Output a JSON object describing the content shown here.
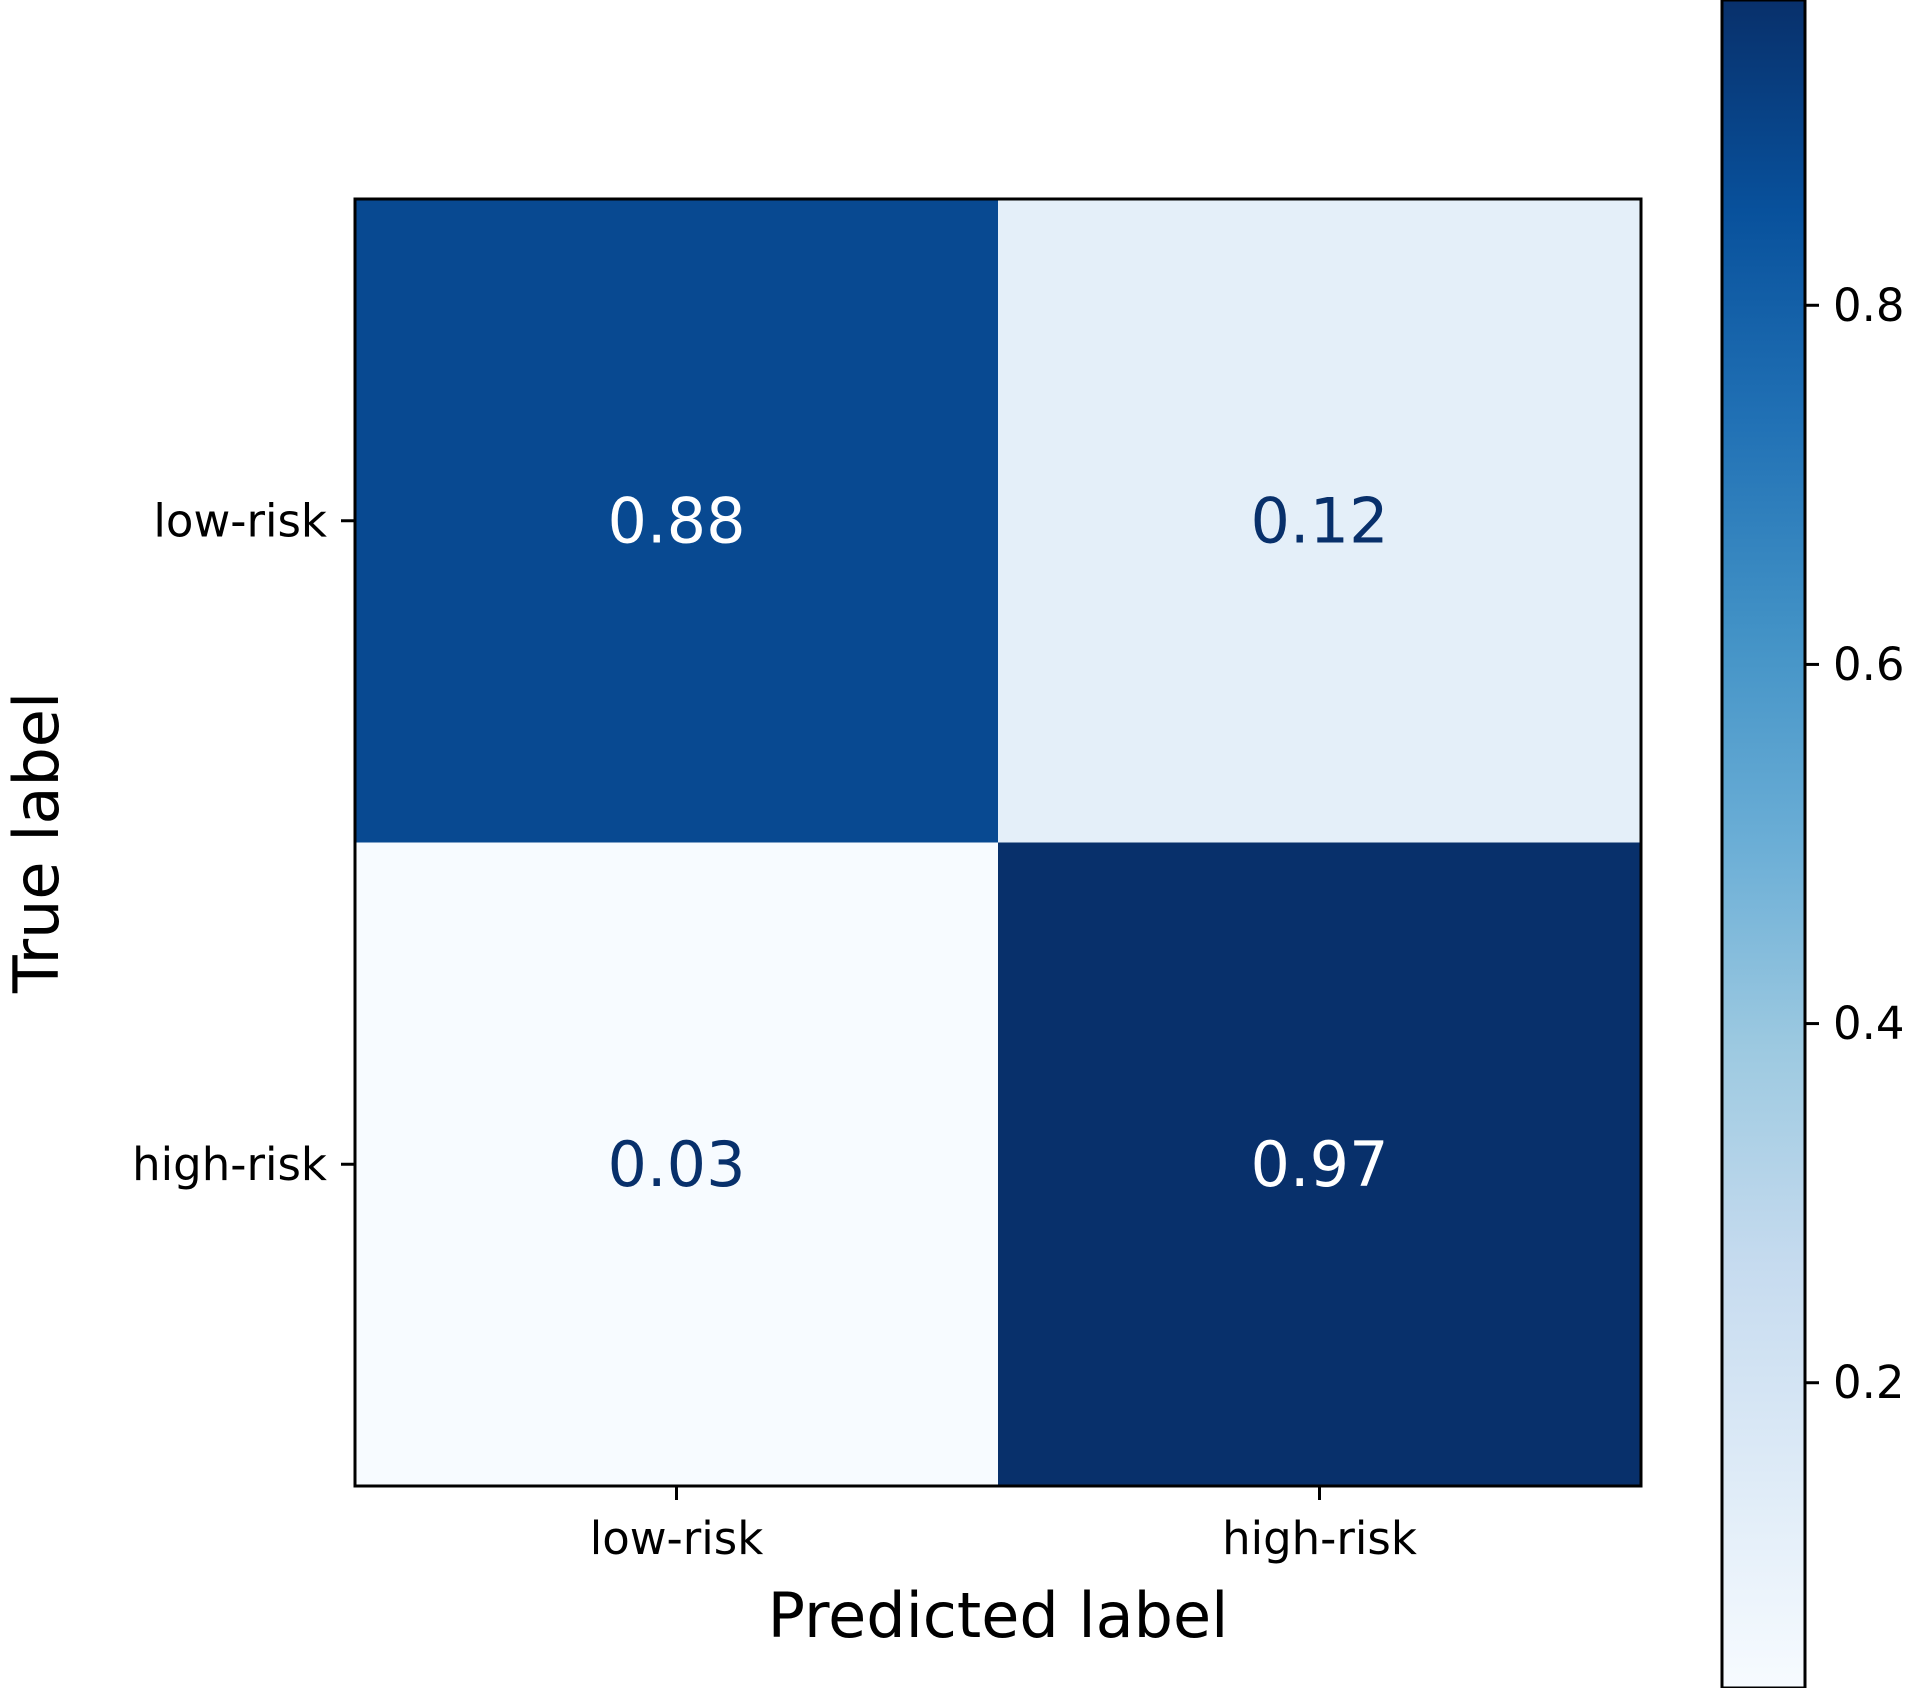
{
  "chart_data": {
    "type": "heatmap",
    "title": "",
    "xlabel": "Predicted label",
    "ylabel": "True label",
    "x_categories": [
      "low-risk",
      "high-risk"
    ],
    "y_categories": [
      "low-risk",
      "high-risk"
    ],
    "values": [
      [
        0.88,
        0.12
      ],
      [
        0.03,
        0.97
      ]
    ],
    "cell_text": [
      [
        "0.88",
        "0.12"
      ],
      [
        "0.03",
        "0.97"
      ]
    ],
    "colormap": "Blues",
    "colorbar": {
      "range": [
        0.03,
        0.97
      ],
      "ticks": [
        0.2,
        0.4,
        0.6,
        0.8
      ],
      "tick_labels": [
        "0.2",
        "0.4",
        "0.6",
        "0.8"
      ]
    },
    "colors": {
      "dark_text": "#08306b",
      "light_text": "#ffffff",
      "colormap_stops": [
        "#f7fbff",
        "#deebf7",
        "#c6dbef",
        "#9ecae1",
        "#6baed6",
        "#4292c6",
        "#2171b5",
        "#08519c",
        "#08306b"
      ]
    }
  }
}
